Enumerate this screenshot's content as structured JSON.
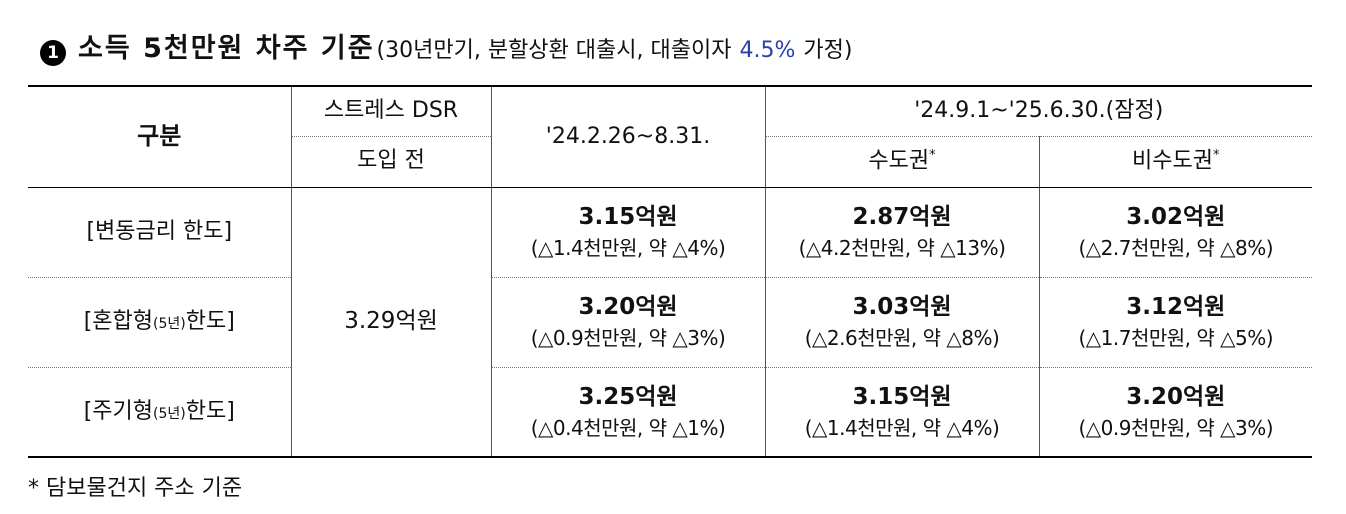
{
  "title": {
    "badge": "1",
    "main": "소득 5천만원 차주 기준",
    "sub": "(30년만기, 분할상환 대출시, 대출이자",
    "rate": "4.5%",
    "sub_end": "가정)"
  },
  "table": {
    "header": {
      "col_label": "구분",
      "before_line1": "스트레스 DSR",
      "before_line2": "도입 전",
      "period1": "'24.2.26~8.31.",
      "period2": "'24.9.1~'25.6.30.(잠정)",
      "metro": "수도권",
      "nonmetro": "비수도권",
      "star": "*"
    },
    "before_value": "3.29억원",
    "rows": [
      {
        "label": "[변동금리 한도]",
        "label_main": "[변동금리 한도]",
        "p1": {
          "value": "3.15억원",
          "change": "(△1.4천만원, 약 △4%)"
        },
        "metro": {
          "value": "2.87억원",
          "change": "(△4.2천만원, 약 △13%)"
        },
        "nonmetro": {
          "value": "3.02억원",
          "change": "(△2.7천만원, 약 △8%)"
        }
      },
      {
        "label_a": "[혼합형",
        "label_small": "(5년)",
        "label_b": "한도]",
        "p1": {
          "value": "3.20억원",
          "change": "(△0.9천만원, 약 △3%)"
        },
        "metro": {
          "value": "3.03억원",
          "change": "(△2.6천만원, 약 △8%)"
        },
        "nonmetro": {
          "value": "3.12억원",
          "change": "(△1.7천만원, 약 △5%)"
        }
      },
      {
        "label_a": "[주기형",
        "label_small": "(5년)",
        "label_b": "한도]",
        "p1": {
          "value": "3.25억원",
          "change": "(△0.4천만원, 약 △1%)"
        },
        "metro": {
          "value": "3.15억원",
          "change": "(△1.4천만원, 약 △4%)"
        },
        "nonmetro": {
          "value": "3.20억원",
          "change": "(△0.9천만원, 약 △3%)"
        }
      }
    ]
  },
  "footnote": "* 담보물건지 주소 기준",
  "colors": {
    "accent": "#2a3faa",
    "border": "#000000"
  }
}
